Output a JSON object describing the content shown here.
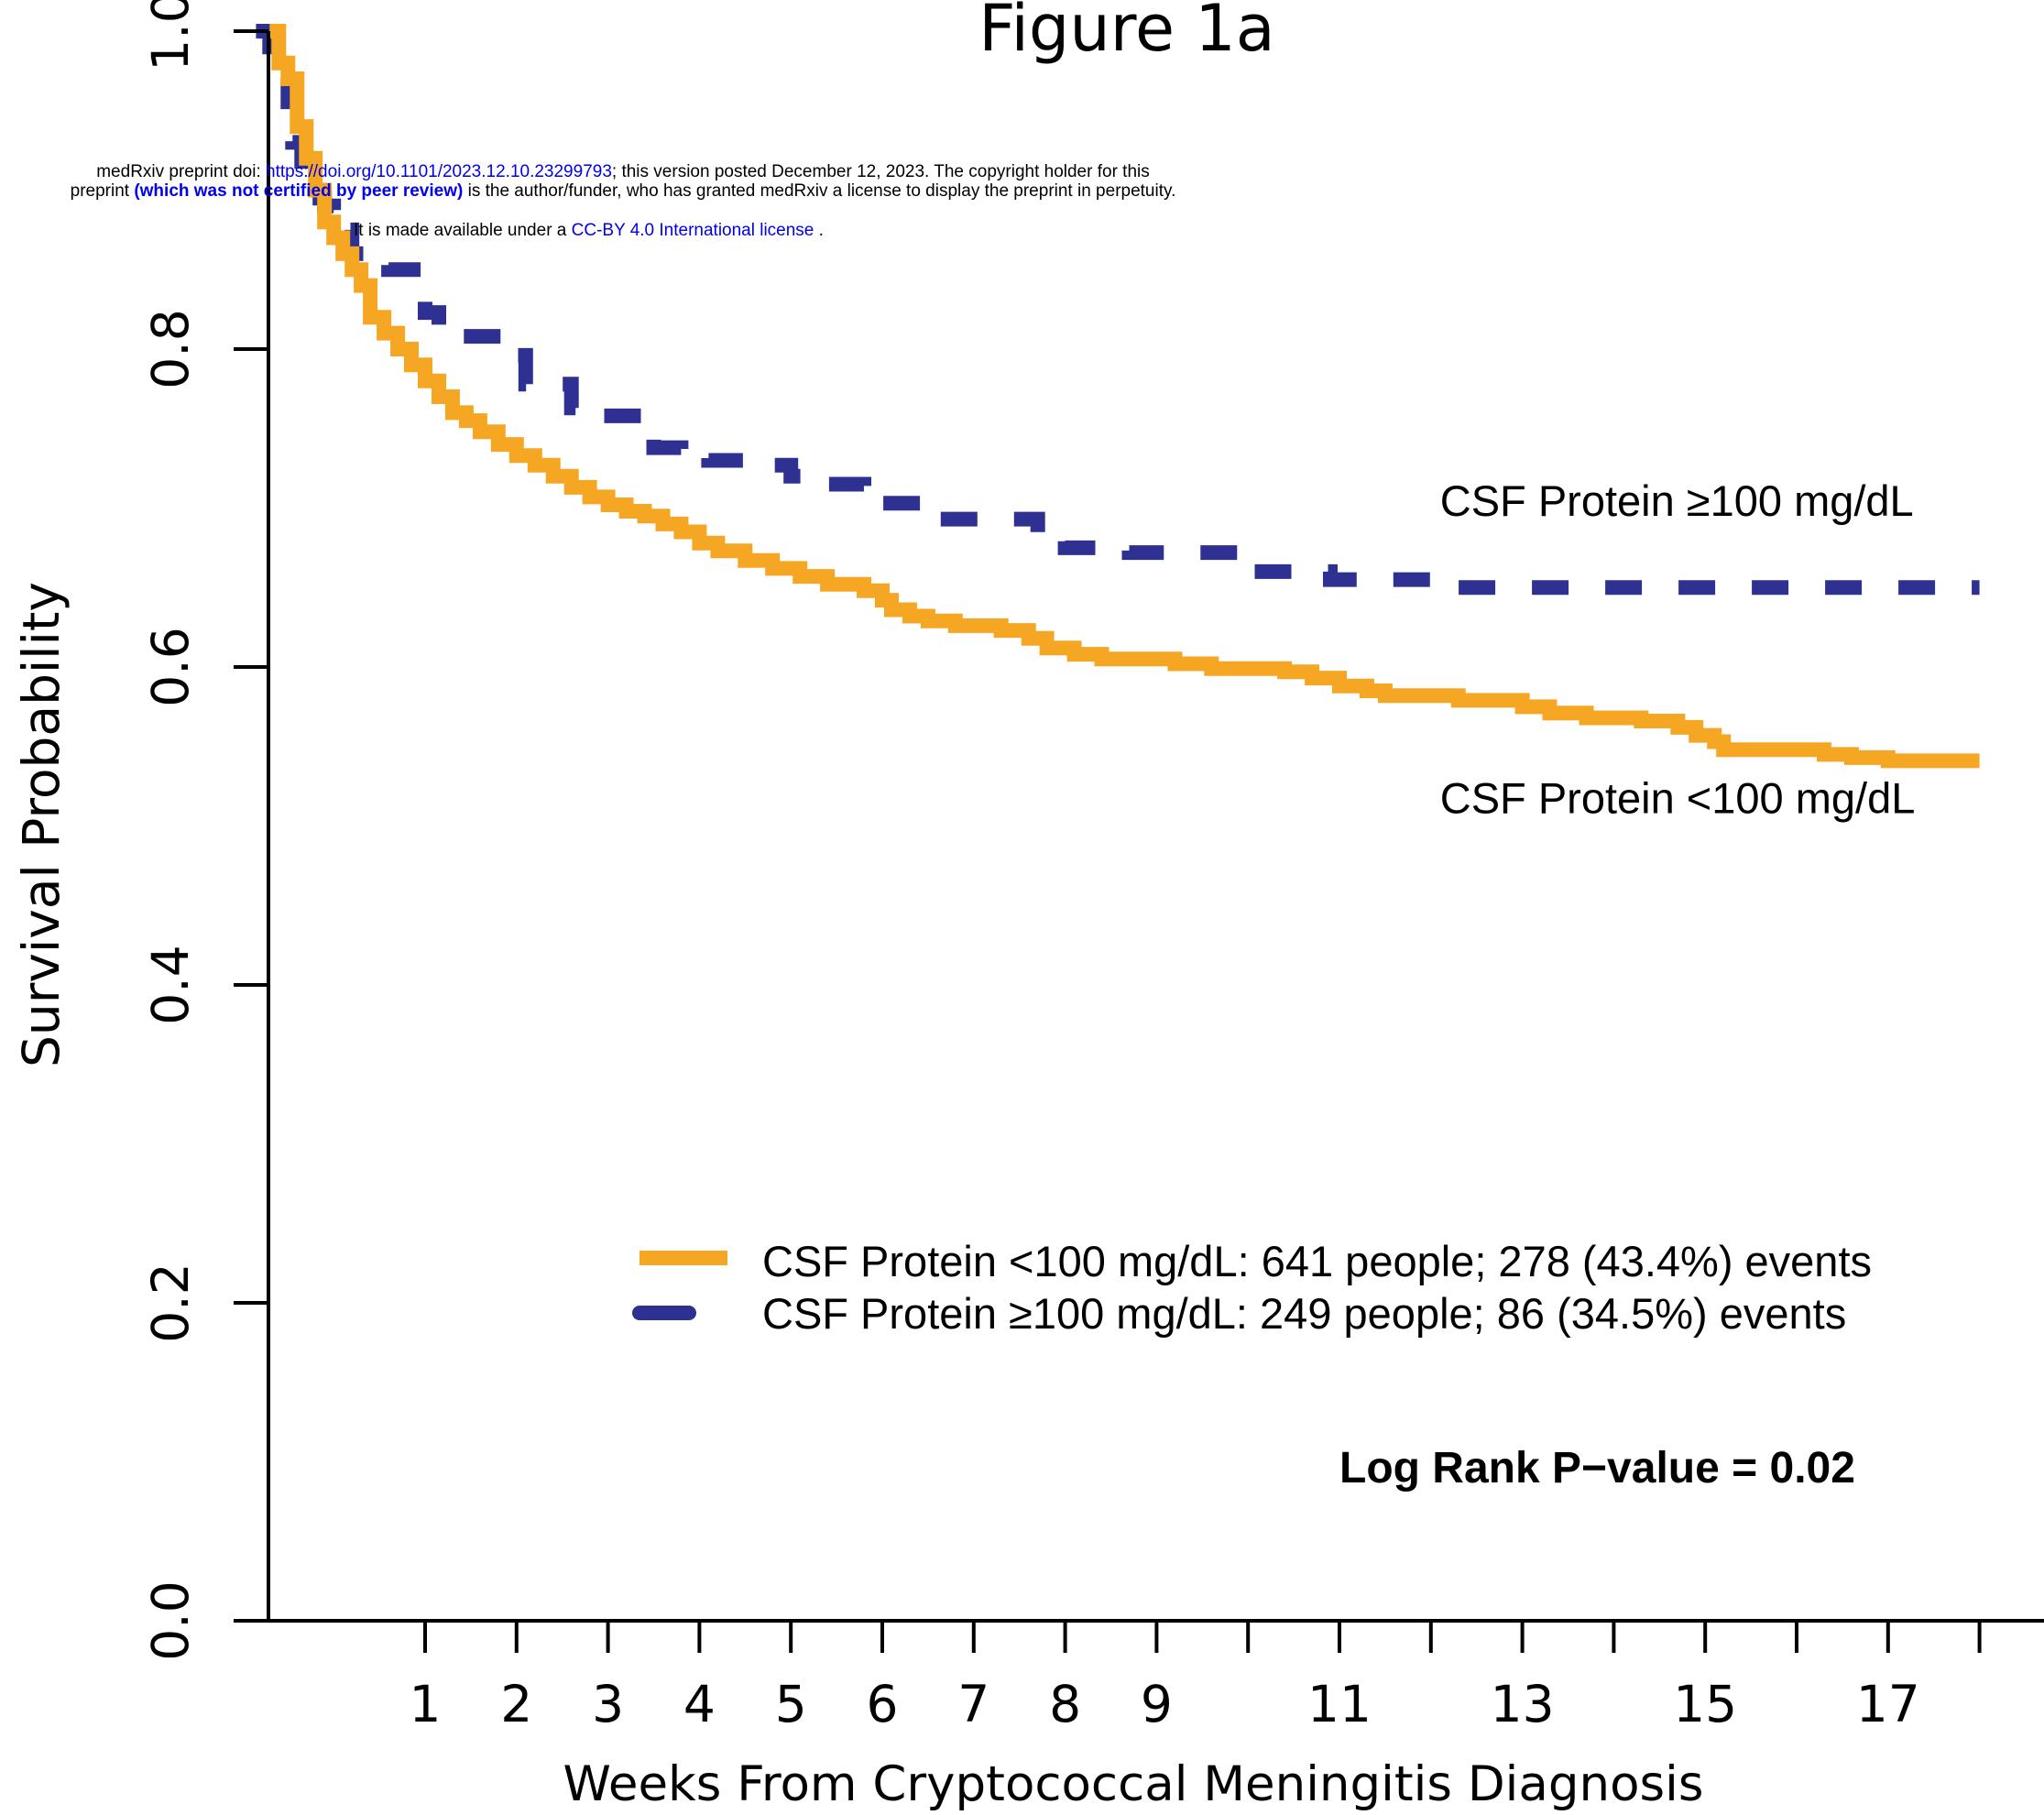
{
  "preprint_notice": {
    "line1_prefix": "medRxiv preprint doi: ",
    "line1_doi": "https://doi.org/10.1101/2023.12.10.23299793",
    "line1_suffix": "; this version posted December 12, 2023. The copyright holder for this",
    "line2_prefix": "preprint ",
    "line2_bold": "(which was not certified by peer review)",
    "line2_suffix": " is the author/funder, who has granted medRxiv a license to display the preprint in perpetuity.",
    "line3_prefix": "It is made available under a ",
    "line3_license": "CC-BY 4.0 International license",
    "line3_suffix": " ."
  },
  "chart_data": {
    "type": "line",
    "title": "Figure 1a",
    "xlabel": "Weeks From Cryptococcal Meningitis Diagnosis",
    "ylabel": "Survival Probability",
    "xlim": [
      -0.9,
      18.2
    ],
    "ylim": [
      0,
      1
    ],
    "x_ticks": [
      1,
      2,
      3,
      4,
      5,
      6,
      7,
      8,
      9,
      10,
      11,
      12,
      13,
      14,
      15,
      16,
      17,
      18
    ],
    "x_tick_labels": [
      "1",
      "2",
      "3",
      "4",
      "5",
      "6",
      "7",
      "8",
      "9",
      "",
      "11",
      "",
      "13",
      "",
      "15",
      "",
      "17",
      ""
    ],
    "y_ticks": [
      0,
      0.2,
      0.4,
      0.6,
      0.8,
      1
    ],
    "y_tick_labels": [
      "0.0",
      "0.2",
      "0.4",
      "0.6",
      "0.8",
      "1.0"
    ],
    "grid": false,
    "legend_position": "lower-center",
    "series": [
      {
        "name": "CSF Protein <100 mg/dL",
        "legend_label": "CSF Protein <100 mg/dL: 641 people; 278 (43.4%) events",
        "color": "#F5A623",
        "style": "solid",
        "step": true,
        "points": [
          [
            -0.7,
            1.0
          ],
          [
            -0.6,
            0.98
          ],
          [
            -0.5,
            0.97
          ],
          [
            -0.4,
            0.94
          ],
          [
            -0.3,
            0.92
          ],
          [
            -0.2,
            0.9
          ],
          [
            -0.1,
            0.88
          ],
          [
            0.0,
            0.87
          ],
          [
            0.1,
            0.86
          ],
          [
            0.2,
            0.85
          ],
          [
            0.3,
            0.84
          ],
          [
            0.4,
            0.82
          ],
          [
            0.55,
            0.81
          ],
          [
            0.7,
            0.8
          ],
          [
            0.85,
            0.79
          ],
          [
            1.0,
            0.78
          ],
          [
            1.15,
            0.77
          ],
          [
            1.3,
            0.76
          ],
          [
            1.45,
            0.755
          ],
          [
            1.6,
            0.748
          ],
          [
            1.8,
            0.74
          ],
          [
            2.0,
            0.733
          ],
          [
            2.2,
            0.727
          ],
          [
            2.4,
            0.72
          ],
          [
            2.6,
            0.713
          ],
          [
            2.8,
            0.707
          ],
          [
            3.0,
            0.702
          ],
          [
            3.2,
            0.698
          ],
          [
            3.4,
            0.695
          ],
          [
            3.6,
            0.69
          ],
          [
            3.8,
            0.685
          ],
          [
            4.0,
            0.678
          ],
          [
            4.2,
            0.673
          ],
          [
            4.5,
            0.667
          ],
          [
            4.8,
            0.662
          ],
          [
            5.1,
            0.657
          ],
          [
            5.4,
            0.652
          ],
          [
            5.8,
            0.648
          ],
          [
            6.0,
            0.642
          ],
          [
            6.1,
            0.636
          ],
          [
            6.3,
            0.632
          ],
          [
            6.5,
            0.629
          ],
          [
            6.8,
            0.626
          ],
          [
            7.3,
            0.623
          ],
          [
            7.6,
            0.618
          ],
          [
            7.8,
            0.612
          ],
          [
            8.1,
            0.608
          ],
          [
            8.4,
            0.605
          ],
          [
            9.2,
            0.602
          ],
          [
            9.6,
            0.599
          ],
          [
            10.4,
            0.597
          ],
          [
            10.7,
            0.593
          ],
          [
            11.0,
            0.588
          ],
          [
            11.3,
            0.585
          ],
          [
            11.5,
            0.582
          ],
          [
            12.3,
            0.579
          ],
          [
            13.0,
            0.575
          ],
          [
            13.3,
            0.571
          ],
          [
            13.7,
            0.568
          ],
          [
            14.3,
            0.566
          ],
          [
            14.7,
            0.562
          ],
          [
            14.9,
            0.557
          ],
          [
            15.1,
            0.553
          ],
          [
            15.2,
            0.548
          ],
          [
            16.3,
            0.545
          ],
          [
            16.6,
            0.543
          ],
          [
            17.0,
            0.541
          ],
          [
            18.0,
            0.541
          ]
        ]
      },
      {
        "name": "CSF Protein ≥100 mg/dL",
        "legend_label": "CSF Protein ≥100 mg/dL: 249 people; 86 (34.5%) events",
        "color": "#2E3192",
        "style": "dashed",
        "step": true,
        "points": [
          [
            -0.85,
            1.0
          ],
          [
            -0.7,
            0.99
          ],
          [
            -0.6,
            0.97
          ],
          [
            -0.5,
            0.95
          ],
          [
            -0.45,
            0.93
          ],
          [
            -0.35,
            0.91
          ],
          [
            -0.2,
            0.9
          ],
          [
            -0.15,
            0.895
          ],
          [
            -0.1,
            0.89
          ],
          [
            0.0,
            0.885
          ],
          [
            0.1,
            0.875
          ],
          [
            0.2,
            0.86
          ],
          [
            0.45,
            0.857
          ],
          [
            0.6,
            0.85
          ],
          [
            1.0,
            0.823
          ],
          [
            1.15,
            0.815
          ],
          [
            1.3,
            0.808
          ],
          [
            1.9,
            0.796
          ],
          [
            2.1,
            0.778
          ],
          [
            2.6,
            0.763
          ],
          [
            2.8,
            0.758
          ],
          [
            3.5,
            0.738
          ],
          [
            3.8,
            0.733
          ],
          [
            4.1,
            0.73
          ],
          [
            4.8,
            0.727
          ],
          [
            5.0,
            0.72
          ],
          [
            5.2,
            0.715
          ],
          [
            5.6,
            0.715
          ],
          [
            5.8,
            0.708
          ],
          [
            6.0,
            0.703
          ],
          [
            6.6,
            0.693
          ],
          [
            7.7,
            0.68
          ],
          [
            8.0,
            0.675
          ],
          [
            8.7,
            0.672
          ],
          [
            10.0,
            0.66
          ],
          [
            10.9,
            0.655
          ],
          [
            12.0,
            0.65
          ],
          [
            18.0,
            0.65
          ]
        ]
      }
    ],
    "annotations": [
      {
        "text": "CSF Protein ≥100 mg/dL",
        "x": 12.1,
        "y": 0.695
      },
      {
        "text": "CSF Protein <100 mg/dL",
        "x": 12.1,
        "y": 0.508
      },
      {
        "text": "Log Rank P−value = 0.02",
        "x": 11.0,
        "y": 0.087,
        "bold": true
      }
    ]
  }
}
